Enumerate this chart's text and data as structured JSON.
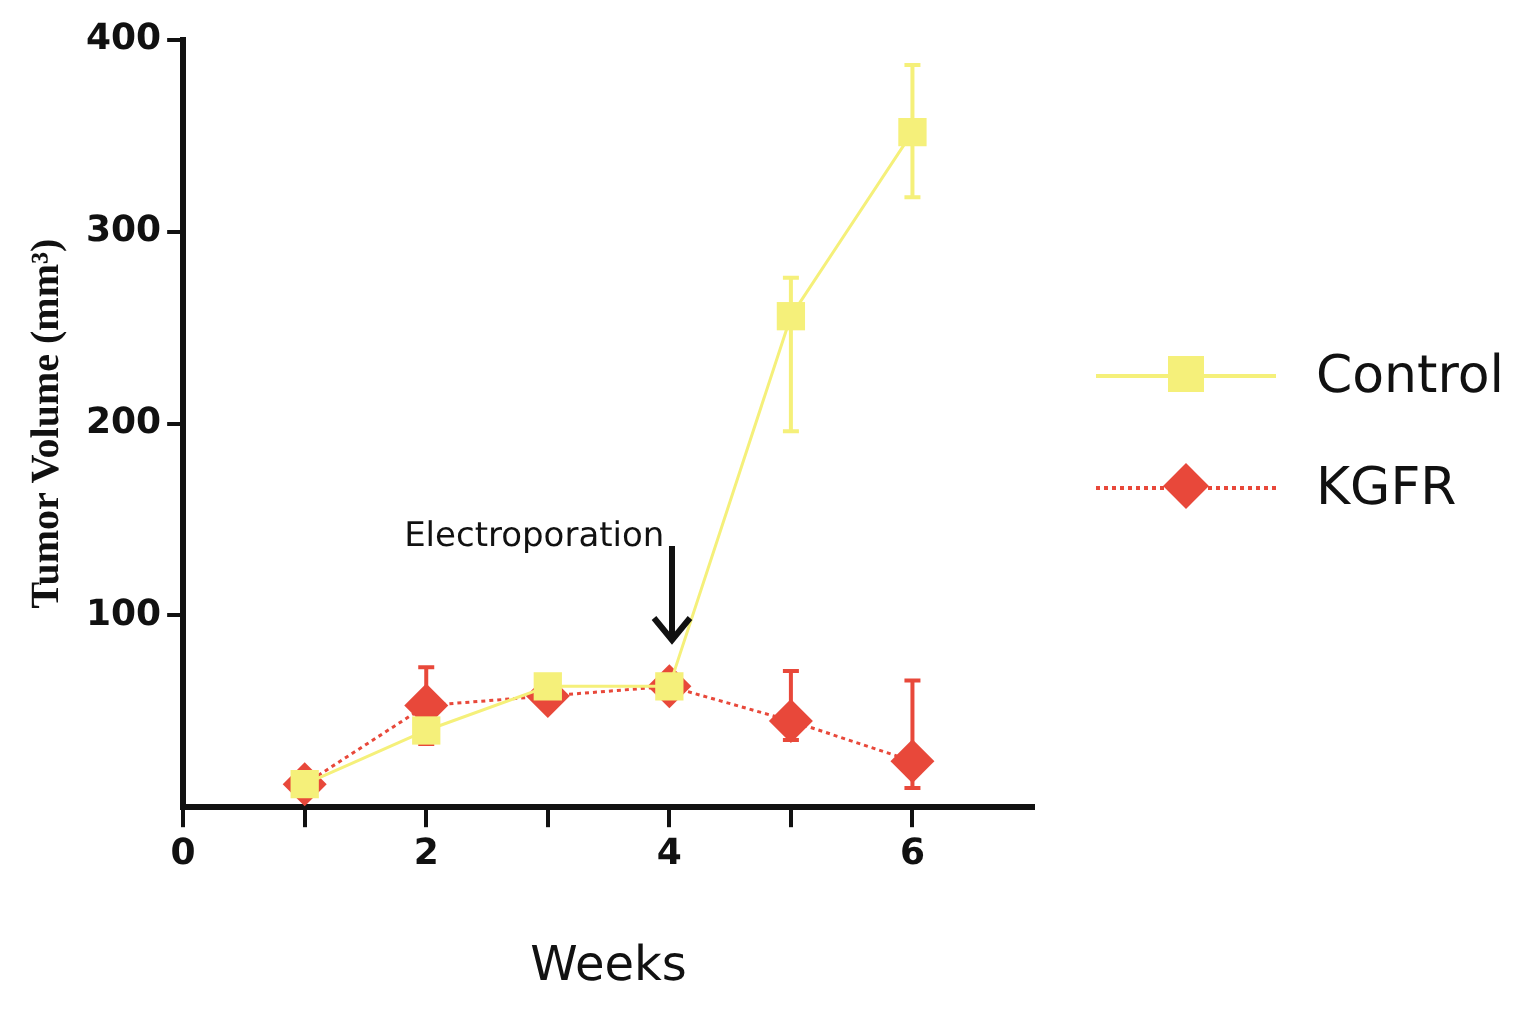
{
  "chart_data": {
    "type": "line",
    "xlabel": "Weeks",
    "ylabel": "Tumor Volume (mm³)",
    "x": [
      1,
      2,
      3,
      4,
      5,
      6
    ],
    "series": [
      {
        "name": "Control",
        "color": "#f5f07a",
        "marker": "square",
        "line_style": "solid",
        "values": [
          12,
          40,
          63,
          63,
          256,
          352
        ],
        "errors": [
          null,
          null,
          null,
          null,
          [
            196,
            276
          ],
          [
            318,
            387
          ]
        ]
      },
      {
        "name": "KGFR",
        "color": "#e8483a",
        "marker": "diamond",
        "line_style": "dotted",
        "values": [
          12,
          53,
          58,
          63,
          45,
          24
        ],
        "errors": [
          null,
          20,
          null,
          null,
          [
            35,
            71
          ],
          [
            10,
            66
          ]
        ]
      }
    ],
    "xlim": [
      0,
      7
    ],
    "xticks": [
      0,
      {
        "value": 1,
        "label": null
      },
      2,
      {
        "value": 3,
        "label": null
      },
      4,
      {
        "value": 5,
        "label": null
      },
      6
    ],
    "ylim": [
      0,
      400
    ],
    "yticks": [
      100,
      200,
      300,
      400
    ],
    "annotations": [
      "Electroporation"
    ],
    "grid": false,
    "legend": "right"
  }
}
